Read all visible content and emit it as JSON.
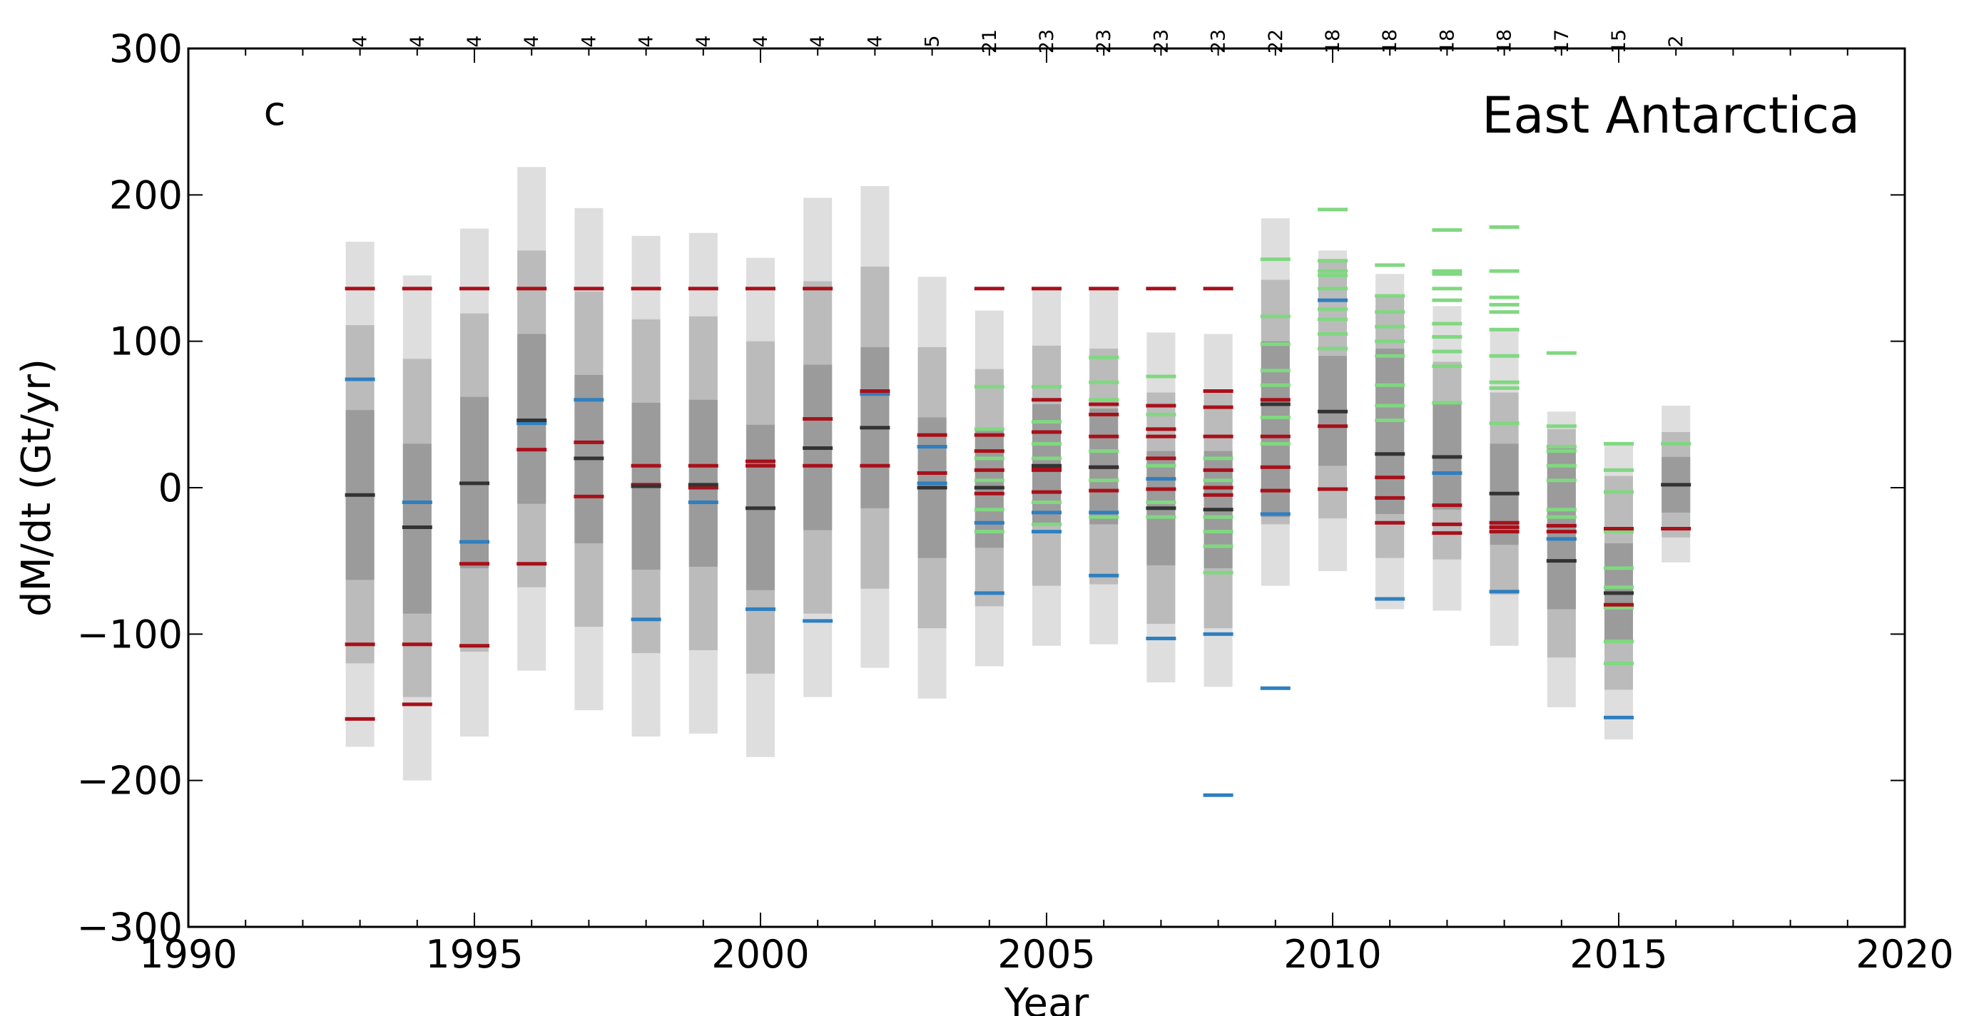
{
  "chart_data": {
    "type": "bar",
    "title": "East Antarctica",
    "panel_label": "c",
    "xlabel": "Year",
    "ylabel": "dM/dt (Gt/yr)",
    "xlim": [
      1990,
      2020
    ],
    "ylim": [
      -300,
      300
    ],
    "xticks": [
      1990,
      1995,
      2000,
      2005,
      2010,
      2015,
      2020
    ],
    "yticks": [
      -300,
      -200,
      -100,
      0,
      100,
      200,
      300
    ],
    "grid": false,
    "colors": {
      "band_outer": "#dedede",
      "band_middle": "#bbbbbb",
      "band_inner": "#9b9b9b",
      "mean": "#333333",
      "red_series": "#a8101a",
      "blue_series": "#2e7fc0",
      "green_series": "#80d880"
    },
    "years": [
      {
        "year": 1993,
        "count": "4",
        "bands": [
          [
            -177,
            168
          ],
          [
            -120,
            111
          ],
          [
            -63,
            53
          ]
        ],
        "mean": -5,
        "red": [
          136,
          -107,
          -158
        ],
        "blue": [
          74
        ],
        "green": []
      },
      {
        "year": 1994,
        "count": "4",
        "bands": [
          [
            -200,
            145
          ],
          [
            -143,
            88
          ],
          [
            -86,
            30
          ]
        ],
        "mean": -27,
        "red": [
          136,
          -107,
          -148
        ],
        "blue": [
          -10
        ],
        "green": []
      },
      {
        "year": 1995,
        "count": "4",
        "bands": [
          [
            -170,
            177
          ],
          [
            -112,
            119
          ],
          [
            -55,
            62
          ]
        ],
        "mean": 3,
        "red": [
          136,
          -52,
          -108
        ],
        "blue": [
          -37
        ],
        "green": []
      },
      {
        "year": 1996,
        "count": "4",
        "bands": [
          [
            -125,
            219
          ],
          [
            -68,
            162
          ],
          [
            -11,
            105
          ]
        ],
        "mean": 46,
        "red": [
          136,
          26,
          -52
        ],
        "blue": [
          44
        ],
        "green": []
      },
      {
        "year": 1997,
        "count": "4",
        "bands": [
          [
            -152,
            191
          ],
          [
            -95,
            134
          ],
          [
            -38,
            77
          ]
        ],
        "mean": 20,
        "red": [
          136,
          31,
          -6
        ],
        "blue": [
          60
        ],
        "green": []
      },
      {
        "year": 1998,
        "count": "4",
        "bands": [
          [
            -170,
            172
          ],
          [
            -113,
            115
          ],
          [
            -56,
            58
          ]
        ],
        "mean": 1,
        "red": [
          136,
          15,
          2
        ],
        "blue": [
          -90
        ],
        "green": []
      },
      {
        "year": 1999,
        "count": "4",
        "bands": [
          [
            -168,
            174
          ],
          [
            -111,
            117
          ],
          [
            -54,
            60
          ]
        ],
        "mean": 2,
        "red": [
          136,
          15,
          0
        ],
        "blue": [
          -10
        ],
        "green": []
      },
      {
        "year": 2000,
        "count": "4",
        "bands": [
          [
            -184,
            157
          ],
          [
            -127,
            100
          ],
          [
            -70,
            43
          ]
        ],
        "mean": -14,
        "red": [
          136,
          18,
          15
        ],
        "blue": [
          -83
        ],
        "green": []
      },
      {
        "year": 2001,
        "count": "4",
        "bands": [
          [
            -143,
            198
          ],
          [
            -86,
            141
          ],
          [
            -29,
            84
          ]
        ],
        "mean": 27,
        "red": [
          136,
          47,
          15
        ],
        "blue": [
          -91
        ],
        "green": []
      },
      {
        "year": 2002,
        "count": "4",
        "bands": [
          [
            -123,
            206
          ],
          [
            -69,
            151
          ],
          [
            -14,
            96
          ]
        ],
        "mean": 41,
        "red": [
          66,
          15
        ],
        "blue": [
          64
        ],
        "green": []
      },
      {
        "year": 2003,
        "count": "5",
        "bands": [
          [
            -144,
            144
          ],
          [
            -96,
            96
          ],
          [
            -48,
            48
          ]
        ],
        "mean": 0,
        "red": [
          36,
          10
        ],
        "blue": [
          28,
          3
        ],
        "green": []
      },
      {
        "year": 2004,
        "count": "21",
        "bands": [
          [
            -122,
            121
          ],
          [
            -81,
            81
          ],
          [
            -41,
            40
          ]
        ],
        "mean": 0,
        "red": [
          136,
          36,
          25,
          12,
          -4
        ],
        "blue": [
          -24,
          -72
        ],
        "green": [
          69,
          40,
          20,
          5,
          -15,
          -30
        ]
      },
      {
        "year": 2005,
        "count": "23",
        "bands": [
          [
            -108,
            136
          ],
          [
            -67,
            97
          ],
          [
            -26,
            57
          ]
        ],
        "mean": 15,
        "red": [
          136,
          60,
          38,
          13,
          12,
          -3
        ],
        "blue": [
          -17,
          -30
        ],
        "green": [
          69,
          45,
          30,
          20,
          -10,
          -25
        ]
      },
      {
        "year": 2006,
        "count": "23",
        "bands": [
          [
            -107,
            136
          ],
          [
            -66,
            95
          ],
          [
            -25,
            54
          ]
        ],
        "mean": 14,
        "red": [
          136,
          57,
          50,
          35,
          14,
          -2
        ],
        "blue": [
          -17,
          -60
        ],
        "green": [
          89,
          72,
          60,
          25,
          5,
          -20
        ]
      },
      {
        "year": 2007,
        "count": "23",
        "bands": [
          [
            -133,
            106
          ],
          [
            -93,
            65
          ],
          [
            -53,
            25
          ]
        ],
        "mean": -14,
        "red": [
          136,
          56,
          40,
          35,
          20,
          -1
        ],
        "blue": [
          6,
          -103
        ],
        "green": [
          76,
          50,
          40,
          15,
          -10,
          -20
        ]
      },
      {
        "year": 2008,
        "count": "23",
        "bands": [
          [
            -136,
            105
          ],
          [
            -96,
            65
          ],
          [
            -55,
            25
          ]
        ],
        "mean": -15,
        "red": [
          136,
          66,
          55,
          35,
          12,
          0,
          -5
        ],
        "blue": [
          -100,
          -210
        ],
        "green": [
          20,
          5,
          -20,
          -30,
          -40,
          -58
        ]
      },
      {
        "year": 2009,
        "count": "22",
        "bands": [
          [
            -67,
            184
          ],
          [
            -25,
            142
          ],
          [
            -20,
            100
          ]
        ],
        "mean": 57,
        "red": [
          60,
          35,
          14,
          -2
        ],
        "blue": [
          -18,
          -137
        ],
        "green": [
          156,
          117,
          98,
          80,
          70,
          48,
          30
        ]
      },
      {
        "year": 2010,
        "count": "18",
        "bands": [
          [
            -57,
            162
          ],
          [
            -21,
            155
          ],
          [
            15,
            90
          ]
        ],
        "mean": 52,
        "red": [
          42,
          -1
        ],
        "blue": [
          128
        ],
        "green": [
          190,
          155,
          148,
          145,
          136,
          122,
          115,
          105,
          95
        ]
      },
      {
        "year": 2011,
        "count": "18",
        "bands": [
          [
            -83,
            146
          ],
          [
            -48,
            130
          ],
          [
            -18,
            95
          ]
        ],
        "mean": 23,
        "red": [
          7,
          -7,
          -24
        ],
        "blue": [
          -76
        ],
        "green": [
          152,
          131,
          120,
          110,
          100,
          90,
          70,
          56,
          46
        ]
      },
      {
        "year": 2012,
        "count": "18",
        "bands": [
          [
            -84,
            124
          ],
          [
            -49,
            86
          ],
          [
            -15,
            58
          ]
        ],
        "mean": 21,
        "red": [
          -12,
          -25,
          -31
        ],
        "blue": [
          10
        ],
        "green": [
          176,
          148,
          146,
          136,
          128,
          112,
          103,
          93,
          83,
          58
        ]
      },
      {
        "year": 2013,
        "count": "18",
        "bands": [
          [
            -108,
            108
          ],
          [
            -73,
            65
          ],
          [
            -39,
            30
          ]
        ],
        "mean": -4,
        "red": [
          -24,
          -27,
          -30
        ],
        "blue": [
          -71
        ],
        "green": [
          178,
          148,
          130,
          125,
          120,
          108,
          90,
          72,
          68,
          44
        ]
      },
      {
        "year": 2014,
        "count": "17",
        "bands": [
          [
            -150,
            52
          ],
          [
            -116,
            40
          ],
          [
            -83,
            28
          ]
        ],
        "mean": -50,
        "red": [
          -26,
          -30
        ],
        "blue": [
          -35
        ],
        "green": [
          92,
          42,
          28,
          25,
          15,
          5,
          -15,
          -20,
          -30
        ]
      },
      {
        "year": 2015,
        "count": "15",
        "bands": [
          [
            -172,
            29
          ],
          [
            -138,
            8
          ],
          [
            -104,
            -38
          ]
        ],
        "mean": -72,
        "red": [
          -28,
          -80
        ],
        "blue": [
          -157
        ],
        "green": [
          30,
          12,
          -3,
          -30,
          -55,
          -68,
          -82,
          -105,
          -120
        ]
      },
      {
        "year": 2016,
        "count": "2",
        "bands": [
          [
            -51,
            56
          ],
          [
            -34,
            38
          ],
          [
            -17,
            21
          ]
        ],
        "mean": 2,
        "red": [
          -28
        ],
        "blue": [],
        "green": [
          30
        ]
      }
    ]
  }
}
